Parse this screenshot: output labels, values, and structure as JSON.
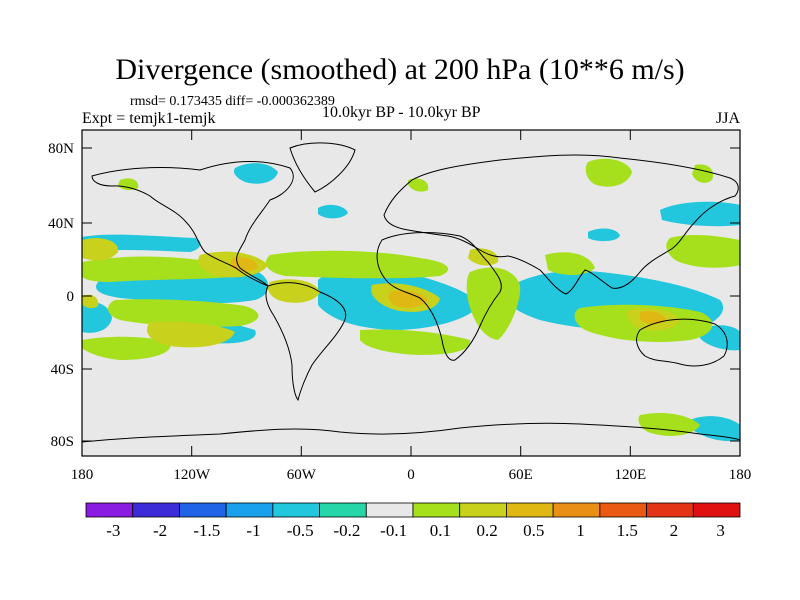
{
  "header": {
    "title": "Divergence (smoothed) at 200 hPa (10**6 m/s)",
    "stats": "rmsd= 0.173435 diff= -0.000362389",
    "experiment": "Expt = temjk1-temjk",
    "period": "10.0kyr BP - 10.0kyr BP",
    "season": "JJA"
  },
  "map": {
    "y_ticks": [
      "80N",
      "40N",
      "0",
      "40S",
      "80S"
    ],
    "x_ticks": [
      "180",
      "120W",
      "60W",
      "0",
      "60E",
      "120E",
      "180"
    ]
  },
  "colorbar": {
    "colors": [
      "#8a1be0",
      "#3b2cd8",
      "#1f63e6",
      "#1aa1ee",
      "#22c6dd",
      "#26d6a8",
      "#e8e8e8",
      "#a6e01c",
      "#c8d21c",
      "#e0b814",
      "#e88f14",
      "#ea5a12",
      "#e33416",
      "#e01010"
    ],
    "labels": [
      "-3",
      "-2",
      "-1.5",
      "-1",
      "-0.5",
      "-0.2",
      "-0.1",
      "0.1",
      "0.2",
      "0.5",
      "1",
      "1.5",
      "2",
      "3"
    ]
  }
}
